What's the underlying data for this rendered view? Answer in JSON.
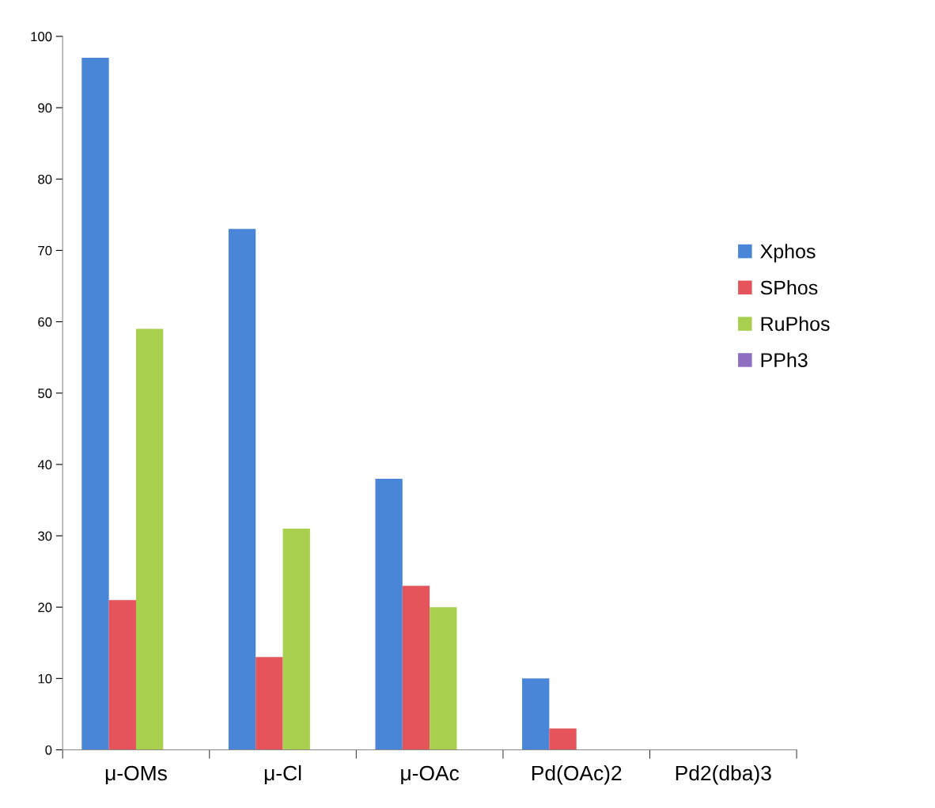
{
  "chart_data": {
    "type": "bar",
    "categories": [
      "μ-OMs",
      "μ-Cl",
      "μ-OAc",
      "Pd(OAc)2",
      "Pd2(dba)3"
    ],
    "series": [
      {
        "name": "Xphos",
        "color": "#4a86d8",
        "values": [
          97,
          73,
          38,
          10,
          0
        ]
      },
      {
        "name": "SPhos",
        "color": "#e5545a",
        "values": [
          21,
          13,
          23,
          3,
          0
        ]
      },
      {
        "name": "RuPhos",
        "color": "#a8cf4e",
        "values": [
          59,
          31,
          20,
          0,
          0
        ]
      },
      {
        "name": "PPh3",
        "color": "#8f6fc2",
        "values": [
          0,
          0,
          0,
          0,
          0
        ]
      }
    ],
    "ylim": [
      0,
      100
    ],
    "yticks": [
      0,
      10,
      20,
      30,
      40,
      50,
      60,
      70,
      80,
      90,
      100
    ],
    "grid": false,
    "legend": "right"
  }
}
